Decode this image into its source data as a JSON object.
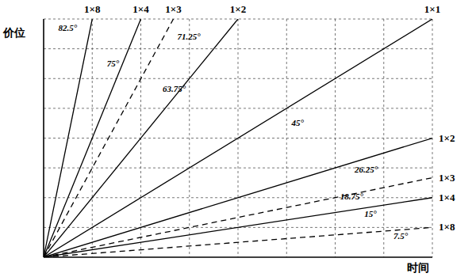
{
  "chart_data": {
    "type": "line",
    "x_label": "时间",
    "y_label": "价位",
    "xlim": [
      0,
      8
    ],
    "ylim": [
      0,
      8
    ],
    "xticks": [
      0,
      1,
      2,
      3,
      4,
      5,
      6,
      7,
      8
    ],
    "yticks": [
      0,
      1,
      2,
      3,
      4,
      5,
      6,
      7,
      8
    ],
    "grid": true,
    "tick_labels": false,
    "color": "#000000",
    "series": [
      {
        "name": "1×8",
        "x": [
          0,
          1
        ],
        "values": [
          0,
          8
        ],
        "line_style": "solid"
      },
      {
        "name": "1×4",
        "x": [
          0,
          2
        ],
        "values": [
          0,
          8
        ],
        "line_style": "solid"
      },
      {
        "name": "1×3",
        "x": [
          0,
          2.67
        ],
        "values": [
          0,
          8
        ],
        "line_style": "dashed"
      },
      {
        "name": "1×2",
        "x": [
          0,
          4
        ],
        "values": [
          0,
          8
        ],
        "line_style": "solid"
      },
      {
        "name": "1×1",
        "x": [
          0,
          8
        ],
        "values": [
          0,
          8
        ],
        "line_style": "solid"
      },
      {
        "name": "1×2",
        "x": [
          0,
          8
        ],
        "values": [
          0,
          4
        ],
        "line_style": "solid"
      },
      {
        "name": "1×3",
        "x": [
          0,
          8
        ],
        "values": [
          0,
          2.67
        ],
        "line_style": "dashed"
      },
      {
        "name": "1×4",
        "x": [
          0,
          8
        ],
        "values": [
          0,
          2
        ],
        "line_style": "solid"
      },
      {
        "name": "1×8",
        "x": [
          0,
          8
        ],
        "values": [
          0,
          1
        ],
        "line_style": "dashed"
      }
    ],
    "annotations": [
      {
        "text": "82.5°",
        "x": 0.3,
        "y": 7.6
      },
      {
        "text": "75°",
        "x": 1.3,
        "y": 6.4
      },
      {
        "text": "71.25°",
        "x": 2.75,
        "y": 7.3
      },
      {
        "text": "63.75°",
        "x": 2.45,
        "y": 5.55
      },
      {
        "text": "45°",
        "x": 5.1,
        "y": 4.4
      },
      {
        "text": "26.25°",
        "x": 6.4,
        "y": 2.85
      },
      {
        "text": "18.75°",
        "x": 6.1,
        "y": 1.95
      },
      {
        "text": "15°",
        "x": 6.6,
        "y": 1.35
      },
      {
        "text": "7.5°",
        "x": 7.2,
        "y": 0.6
      }
    ]
  }
}
